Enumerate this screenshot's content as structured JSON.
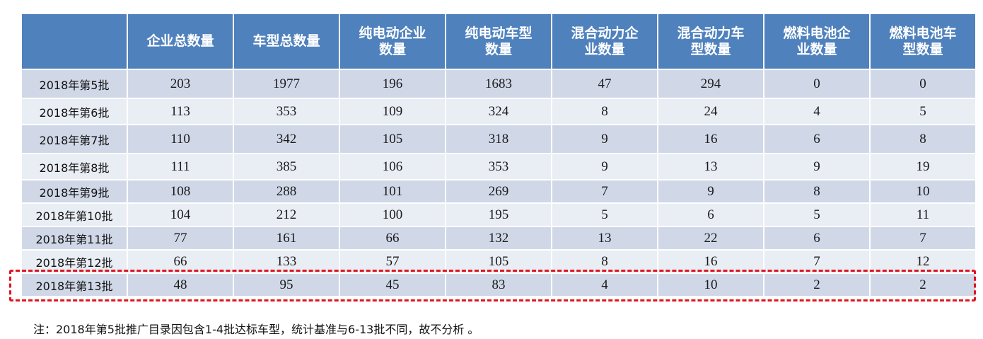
{
  "headers": [
    "",
    "企业总数量",
    "车型总数量",
    "纯电动企业数量",
    "纯电动车型数量",
    "混合动力企业数量",
    "混合动力车型数量",
    "燃料电池企业数量",
    "燃料电池车型数量"
  ],
  "rows": [
    [
      "2018年第5批",
      "203",
      "1977",
      "196",
      "1683",
      "47",
      "294",
      "0",
      "0"
    ],
    [
      "2018年第6批",
      "113",
      "353",
      "109",
      "324",
      "8",
      "24",
      "4",
      "5"
    ],
    [
      "2018年第7批",
      "110",
      "342",
      "105",
      "318",
      "9",
      "16",
      "6",
      "8"
    ],
    [
      "2018年第8批",
      "111",
      "385",
      "106",
      "353",
      "9",
      "13",
      "9",
      "19"
    ],
    [
      "2018年第9批",
      "108",
      "288",
      "101",
      "269",
      "7",
      "9",
      "8",
      "10"
    ],
    [
      "2018年第10批",
      "104",
      "212",
      "100",
      "195",
      "5",
      "6",
      "5",
      "11"
    ],
    [
      "2018年第11批",
      "77",
      "161",
      "66",
      "132",
      "13",
      "22",
      "6",
      "7"
    ],
    [
      "2018年第12批",
      "66",
      "133",
      "57",
      "105",
      "8",
      "16",
      "7",
      "12"
    ],
    [
      "2018年第13批",
      "48",
      "95",
      "45",
      "83",
      "4",
      "10",
      "2",
      "2"
    ]
  ],
  "highlighted_row": "2018年第13批",
  "note": "注：2018年第5批推广目录因包含1-4批达标车型，统计基准与6-13批不同，故不分析 。",
  "colors": {
    "header_bg": "#4f81bd",
    "row_odd": "#d0d8e8",
    "row_even": "#e9edf4",
    "highlight_border": "#e0141e"
  }
}
